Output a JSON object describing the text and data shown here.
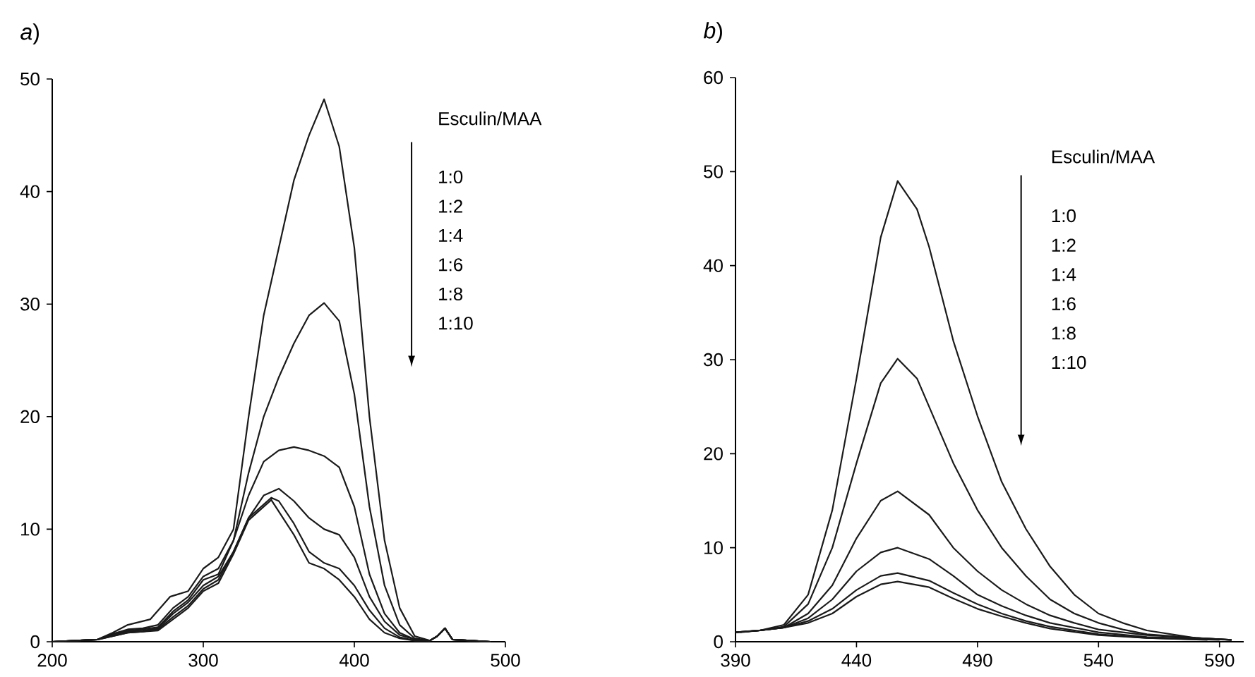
{
  "chart_data": [
    {
      "type": "line",
      "title": "*a*)",
      "xlim": [
        200,
        500
      ],
      "ylim": [
        0,
        50
      ],
      "xticks": [
        200,
        300,
        400,
        500
      ],
      "yticks": [
        0,
        10,
        20,
        30,
        40,
        50
      ],
      "grid": false,
      "marker": "none",
      "line_style": "solid",
      "annotations": [
        "Esculin/MAA",
        "1:0",
        "1:2",
        "1:4",
        "1:6",
        "1:8",
        "1:10"
      ],
      "series": [
        {
          "color": "#1a1a1a",
          "x": [
            200,
            230,
            240,
            250,
            265,
            278,
            290,
            300,
            310,
            320,
            330,
            340,
            350,
            360,
            370,
            380,
            390,
            400,
            410,
            420,
            430,
            440,
            450,
            455,
            460,
            465,
            490
          ],
          "values": [
            0,
            0.2,
            0.8,
            1.5,
            2,
            4,
            4.5,
            6.5,
            7.5,
            10,
            20,
            29,
            35,
            41,
            45,
            48.2,
            44,
            35,
            20,
            9,
            3,
            0.5,
            0.1,
            0.5,
            1.2,
            0.2,
            0
          ]
        },
        {
          "color": "#1a1a1a",
          "x": [
            200,
            230,
            240,
            250,
            260,
            270,
            280,
            290,
            300,
            310,
            320,
            330,
            340,
            350,
            360,
            370,
            380,
            390,
            400,
            410,
            420,
            430,
            440,
            450,
            455,
            460,
            465,
            490
          ],
          "values": [
            0,
            0.2,
            0.7,
            1.1,
            1.2,
            1.5,
            3,
            4,
            5.8,
            6.5,
            9,
            15,
            20,
            23.5,
            26.5,
            29,
            30.1,
            28.5,
            22,
            12,
            5,
            1.5,
            0.3,
            0.1,
            0.5,
            1.2,
            0.2,
            0
          ]
        },
        {
          "color": "#1a1a1a",
          "x": [
            200,
            230,
            240,
            250,
            260,
            270,
            280,
            290,
            300,
            310,
            320,
            330,
            340,
            350,
            360,
            370,
            380,
            390,
            400,
            410,
            420,
            430,
            440,
            450,
            455,
            460,
            465,
            490
          ],
          "values": [
            0,
            0.2,
            0.6,
            1,
            1.1,
            1.3,
            2.7,
            3.7,
            5.5,
            6,
            9,
            13,
            16,
            17,
            17.3,
            17,
            16.5,
            15.5,
            12,
            6,
            2.5,
            0.8,
            0.2,
            0.1,
            0.5,
            1.2,
            0.2,
            0
          ]
        },
        {
          "color": "#1a1a1a",
          "x": [
            200,
            230,
            240,
            250,
            260,
            270,
            280,
            290,
            300,
            310,
            320,
            330,
            340,
            350,
            360,
            370,
            380,
            390,
            400,
            410,
            420,
            430,
            440,
            450,
            455,
            460,
            465,
            490
          ],
          "values": [
            0,
            0.2,
            0.6,
            0.9,
            1,
            1.2,
            2.5,
            3.5,
            5,
            5.8,
            8,
            11,
            13,
            13.6,
            12.5,
            11,
            10,
            9.5,
            7.5,
            4,
            1.8,
            0.6,
            0.2,
            0.1,
            0.5,
            1.2,
            0.2,
            0
          ]
        },
        {
          "color": "#1a1a1a",
          "x": [
            200,
            230,
            240,
            250,
            260,
            270,
            280,
            290,
            300,
            310,
            320,
            330,
            345,
            350,
            360,
            370,
            380,
            390,
            400,
            410,
            420,
            430,
            440,
            450,
            455,
            460,
            465,
            490
          ],
          "values": [
            0,
            0.2,
            0.5,
            0.8,
            0.9,
            1.1,
            2.2,
            3.2,
            4.7,
            5.5,
            8,
            11,
            12.8,
            12.5,
            10.5,
            8,
            7,
            6.5,
            5,
            2.8,
            1.2,
            0.4,
            0.1,
            0.1,
            0.5,
            1.2,
            0.2,
            0
          ]
        },
        {
          "color": "#1a1a1a",
          "x": [
            200,
            230,
            240,
            250,
            260,
            270,
            280,
            290,
            300,
            310,
            320,
            330,
            345,
            360,
            370,
            380,
            390,
            400,
            410,
            420,
            430,
            440,
            450,
            455,
            460,
            465,
            490
          ],
          "values": [
            0,
            0.2,
            0.5,
            0.8,
            0.9,
            1,
            2,
            3,
            4.5,
            5.2,
            7.8,
            10.8,
            12.6,
            9.5,
            7,
            6.5,
            5.5,
            4,
            2,
            0.8,
            0.3,
            0.1,
            0.1,
            0.5,
            1.2,
            0.2,
            0
          ]
        }
      ]
    },
    {
      "type": "line",
      "title": "*b*)",
      "xlim": [
        390,
        600
      ],
      "ylim": [
        0,
        60
      ],
      "xticks": [
        390,
        440,
        490,
        540,
        590
      ],
      "yticks": [
        0,
        10,
        20,
        30,
        40,
        50,
        60
      ],
      "grid": false,
      "marker": "none",
      "line_style": "solid",
      "annotations": [
        "Esculin/MAA",
        "1:0",
        "1:2",
        "1:4",
        "1:6",
        "1:8",
        "1:10"
      ],
      "series": [
        {
          "color": "#1a1a1a",
          "x": [
            390,
            400,
            410,
            420,
            430,
            440,
            450,
            457,
            465,
            470,
            480,
            490,
            500,
            510,
            520,
            530,
            540,
            550,
            560,
            570,
            580,
            595
          ],
          "values": [
            1,
            1.2,
            1.8,
            5,
            14,
            28,
            43,
            49,
            46,
            42,
            32,
            24,
            17,
            12,
            8,
            5,
            3,
            2,
            1.2,
            0.8,
            0.4,
            0.2
          ]
        },
        {
          "color": "#1a1a1a",
          "x": [
            390,
            400,
            410,
            420,
            430,
            440,
            450,
            457,
            465,
            470,
            480,
            490,
            500,
            510,
            520,
            530,
            540,
            550,
            560,
            580,
            595
          ],
          "values": [
            1,
            1.2,
            1.6,
            4,
            10,
            19,
            27.5,
            30.1,
            28,
            25,
            19,
            14,
            10,
            7,
            4.5,
            3,
            2,
            1.3,
            0.8,
            0.4,
            0.2
          ]
        },
        {
          "color": "#1a1a1a",
          "x": [
            390,
            400,
            410,
            420,
            430,
            440,
            450,
            457,
            470,
            480,
            490,
            500,
            510,
            520,
            530,
            540,
            560,
            595
          ],
          "values": [
            1,
            1.2,
            1.5,
            3,
            6,
            11,
            15,
            16,
            13.5,
            10,
            7.5,
            5.5,
            4,
            2.8,
            2,
            1.3,
            0.7,
            0.2
          ]
        },
        {
          "color": "#1a1a1a",
          "x": [
            390,
            400,
            410,
            420,
            430,
            440,
            450,
            457,
            470,
            480,
            490,
            500,
            510,
            520,
            540,
            560,
            595
          ],
          "values": [
            1,
            1.2,
            1.5,
            2.5,
            4.5,
            7.5,
            9.5,
            10,
            8.8,
            7,
            5,
            3.8,
            2.8,
            2,
            1,
            0.5,
            0.2
          ]
        },
        {
          "color": "#1a1a1a",
          "x": [
            392,
            400,
            410,
            420,
            430,
            440,
            450,
            457,
            470,
            480,
            490,
            500,
            510,
            520,
            540,
            560,
            590
          ],
          "values": [
            1,
            1.2,
            1.5,
            2.2,
            3.5,
            5.5,
            7,
            7.3,
            6.5,
            5.2,
            4,
            3,
            2.2,
            1.6,
            0.8,
            0.4,
            0.2
          ]
        },
        {
          "color": "#1a1a1a",
          "x": [
            394,
            400,
            410,
            420,
            430,
            440,
            450,
            457,
            470,
            480,
            490,
            500,
            510,
            520,
            540,
            560,
            585
          ],
          "values": [
            1.1,
            1.2,
            1.5,
            2,
            3,
            4.8,
            6.1,
            6.4,
            5.8,
            4.6,
            3.5,
            2.7,
            2,
            1.4,
            0.7,
            0.4,
            0.2
          ]
        }
      ]
    }
  ]
}
